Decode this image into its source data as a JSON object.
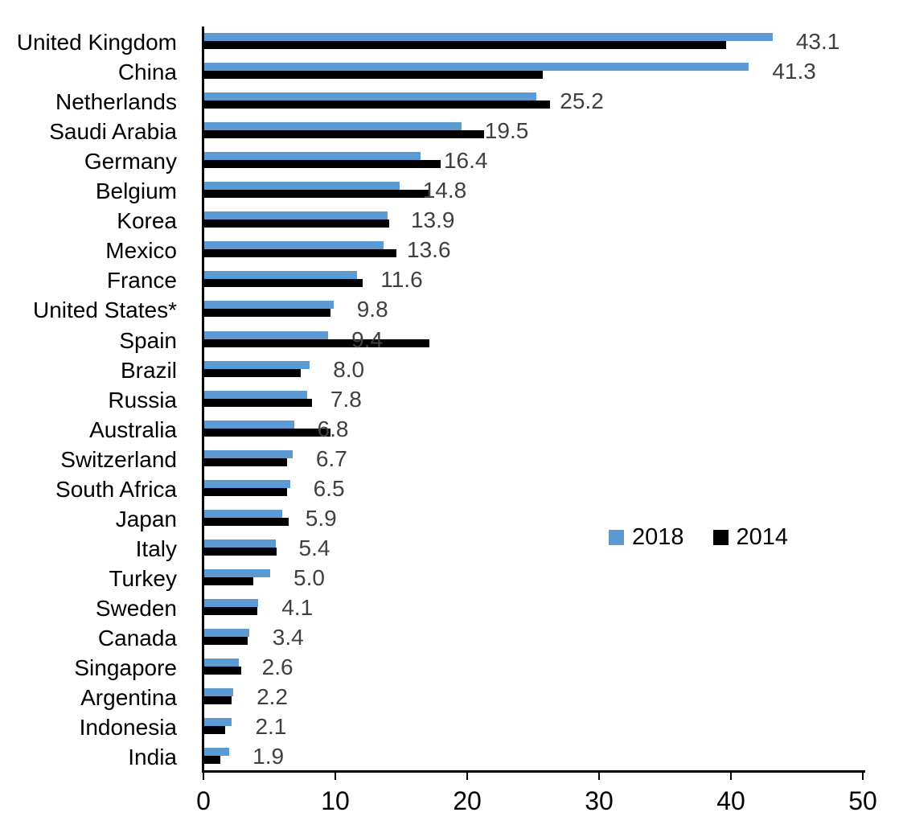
{
  "chart_data": {
    "type": "bar",
    "orientation": "horizontal",
    "title": "",
    "xlabel": "",
    "ylabel": "",
    "xlim": [
      0,
      50
    ],
    "x_ticks": [
      0,
      10,
      20,
      30,
      40,
      50
    ],
    "x_tick_labels": [
      "0",
      "10",
      "20",
      "30",
      "40",
      "50"
    ],
    "grid": false,
    "categories": [
      "United Kingdom",
      "China",
      "Netherlands",
      "Saudi Arabia",
      "Germany",
      "Belgium",
      "Korea",
      "Mexico",
      "France",
      "United States*",
      "Spain",
      "Brazil",
      "Russia",
      "Australia",
      "Switzerland",
      "South Africa",
      "Japan",
      "Italy",
      "Turkey",
      "Sweden",
      "Canada",
      "Singapore",
      "Argentina",
      "Indonesia",
      "India"
    ],
    "series": [
      {
        "name": "2018",
        "color": "#5B9BD5",
        "values": [
          43.1,
          41.3,
          25.2,
          19.5,
          16.4,
          14.8,
          13.9,
          13.6,
          11.6,
          9.8,
          9.4,
          8.0,
          7.8,
          6.8,
          6.7,
          6.5,
          5.9,
          5.4,
          5.0,
          4.1,
          3.4,
          2.6,
          2.2,
          2.1,
          1.9
        ]
      },
      {
        "name": "2014",
        "color": "#000000",
        "values": [
          39.6,
          25.7,
          26.2,
          21.2,
          17.9,
          17.1,
          14.0,
          14.6,
          12.0,
          9.6,
          17.1,
          7.3,
          8.2,
          9.6,
          6.3,
          6.3,
          6.4,
          5.5,
          3.7,
          4.0,
          3.3,
          2.8,
          2.1,
          1.6,
          1.2
        ]
      }
    ],
    "data_labels": {
      "attached_to_series": "2018",
      "values": [
        "43.1",
        "41.3",
        "25.2",
        "19.5",
        "16.4",
        "14.8",
        "13.9",
        "13.6",
        "11.6",
        "9.8",
        "9.4",
        "8.0",
        "7.8",
        "6.8",
        "6.7",
        "6.5",
        "5.9",
        "5.4",
        "5.0",
        "4.1",
        "3.4",
        "2.6",
        "2.2",
        "2.1",
        "1.9"
      ]
    },
    "legend": {
      "position": "middle-right",
      "entries": [
        "2018",
        "2014"
      ]
    }
  },
  "colors": {
    "series_2018": "#5B9BD5",
    "series_2014": "#000000",
    "data_label_text": "#404040",
    "axis": "#000000"
  }
}
